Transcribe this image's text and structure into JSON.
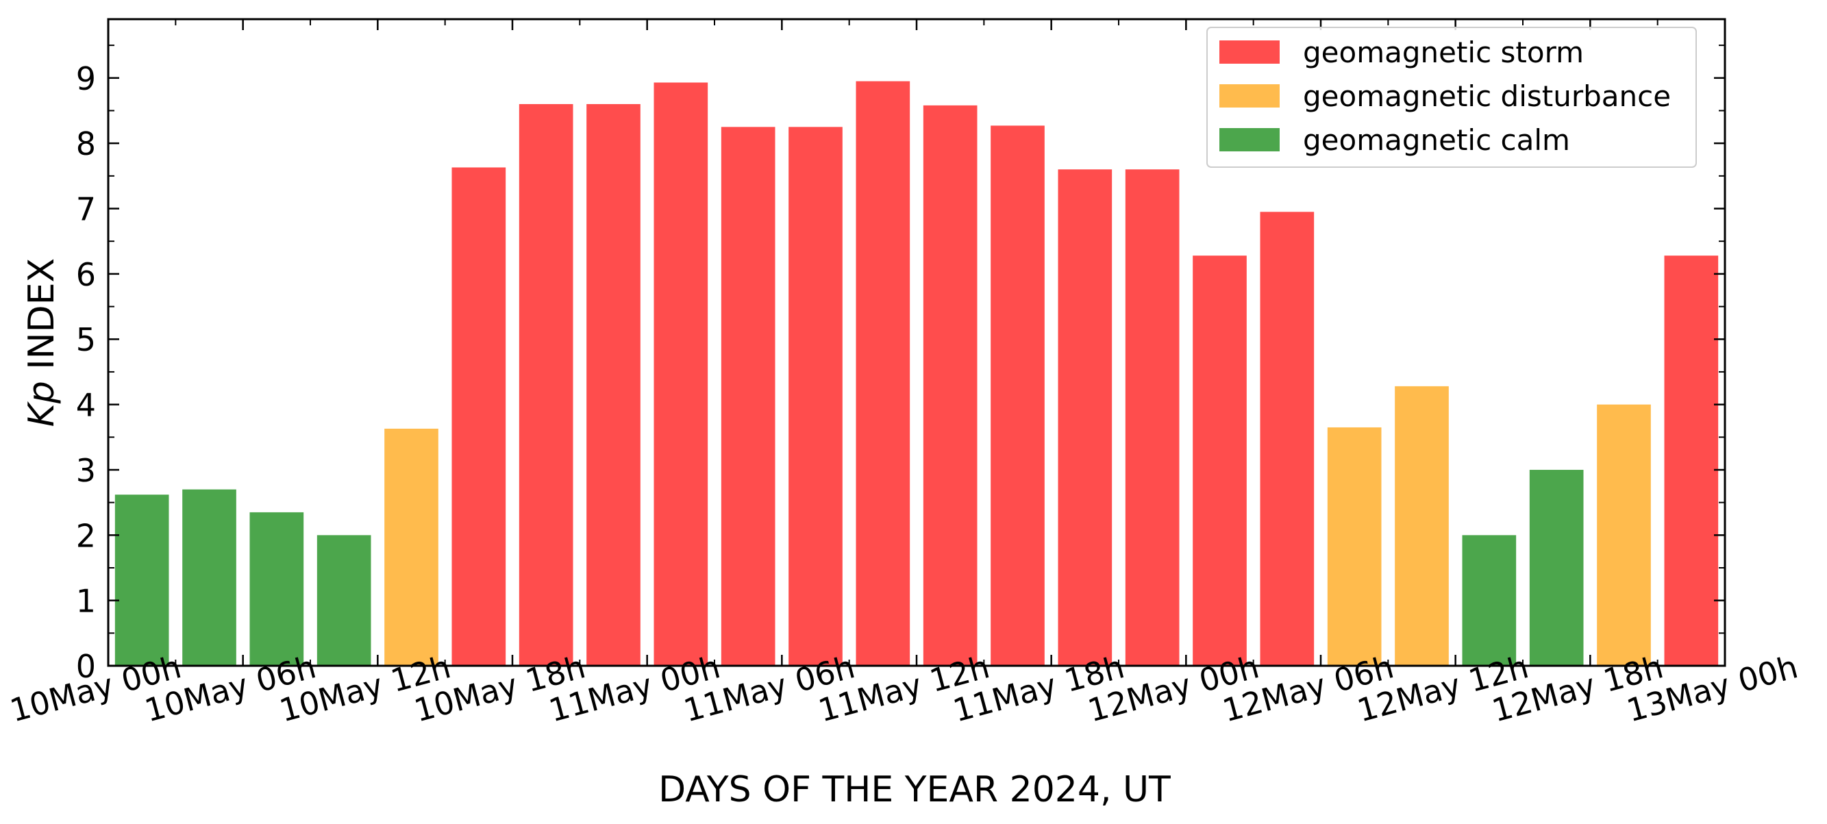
{
  "chart_data": {
    "type": "bar",
    "xlabel": "DAYS OF THE YEAR 2024, UT",
    "ylabel_italic": "Kp",
    "ylabel_rest": " INDEX",
    "ylim": [
      0,
      9.9
    ],
    "yticks": [
      0,
      1,
      2,
      3,
      4,
      5,
      6,
      7,
      8,
      9
    ],
    "ytick_labels": [
      "0",
      "1",
      "2",
      "3",
      "4",
      "5",
      "6",
      "7",
      "8",
      "9"
    ],
    "xticks": [
      "10May 00h",
      "10May 06h",
      "10May 12h",
      "10May 18h",
      "11May 00h",
      "11May 06h",
      "11May 12h",
      "11May 18h",
      "12May 00h",
      "12May 06h",
      "12May 12h",
      "12May 18h",
      "13May 00h"
    ],
    "bin_hours": 3,
    "values": [
      2.62,
      2.7,
      2.35,
      2.0,
      3.63,
      7.63,
      8.6,
      8.6,
      8.93,
      8.25,
      8.25,
      8.95,
      8.58,
      8.27,
      7.6,
      7.6,
      6.28,
      6.95,
      3.65,
      4.28,
      2.0,
      3.0,
      4.0,
      6.28
    ],
    "levels": [
      "calm",
      "calm",
      "calm",
      "calm",
      "disturbance",
      "storm",
      "storm",
      "storm",
      "storm",
      "storm",
      "storm",
      "storm",
      "storm",
      "storm",
      "storm",
      "storm",
      "storm",
      "storm",
      "disturbance",
      "disturbance",
      "calm",
      "calm",
      "disturbance",
      "storm"
    ],
    "colors": {
      "storm": "#ff4d4d",
      "disturbance": "#ffbb4d",
      "calm": "#4ca64c"
    },
    "legend": {
      "position": "top-right",
      "items": [
        {
          "key": "storm",
          "label": "geomagnetic storm"
        },
        {
          "key": "disturbance",
          "label": "geomagnetic disturbance"
        },
        {
          "key": "calm",
          "label": "geomagnetic calm"
        }
      ]
    }
  }
}
